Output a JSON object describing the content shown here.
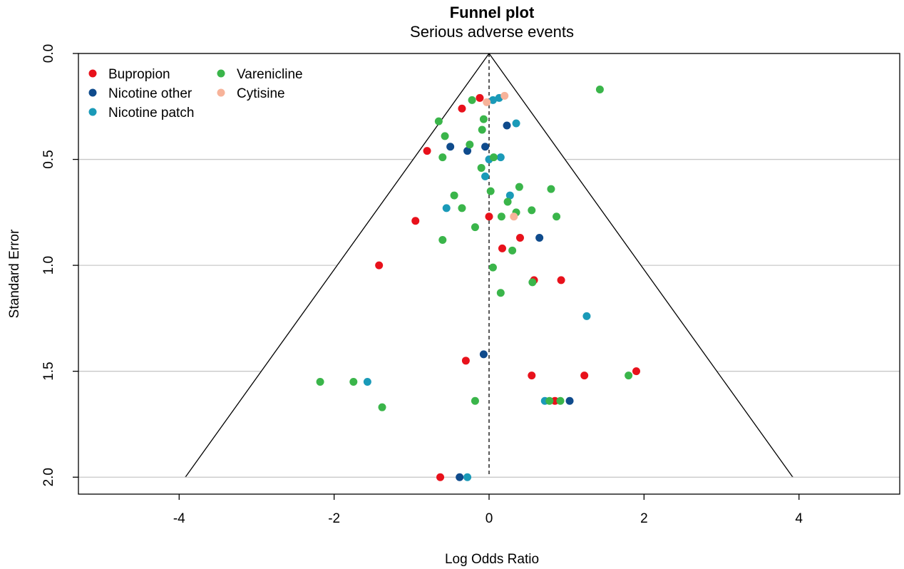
{
  "chart_data": {
    "type": "scatter",
    "title": "Funnel plot",
    "subtitle": "Serious adverse events",
    "xlabel": "Log Odds Ratio",
    "ylabel": "Standard Error",
    "xlim": [
      -5.3,
      5.3
    ],
    "ylim": [
      2.08,
      0.0
    ],
    "y_reversed": true,
    "x_ticks": [
      "-4",
      "-2",
      "0",
      "2",
      "4"
    ],
    "x_tick_values": [
      -4,
      -2,
      0,
      2,
      4
    ],
    "y_ticks": [
      "0.0",
      "0.5",
      "1.0",
      "1.5",
      "2.0"
    ],
    "y_tick_values": [
      0.0,
      0.5,
      1.0,
      1.5,
      2.0
    ],
    "grid": "horizontal",
    "funnel": {
      "apex": [
        0,
        0
      ],
      "base_se": 2.0,
      "base_x": [
        -3.92,
        3.92
      ]
    },
    "reference_line_x": 0,
    "legend": {
      "placement": "top-left",
      "entries": [
        {
          "label": "Bupropion",
          "series": 0
        },
        {
          "label": "Varenicline",
          "series": 3
        },
        {
          "label": "Nicotine other",
          "series": 1
        },
        {
          "label": "Cytisine",
          "series": 4
        },
        {
          "label": "Nicotine patch",
          "series": 2
        }
      ]
    },
    "series": [
      {
        "name": "Bupropion",
        "color": "#e8111b",
        "points": [
          [
            -0.12,
            0.21
          ],
          [
            -0.35,
            0.26
          ],
          [
            -0.8,
            0.46
          ],
          [
            -0.95,
            0.79
          ],
          [
            0.0,
            0.77
          ],
          [
            0.4,
            0.87
          ],
          [
            0.17,
            0.92
          ],
          [
            -1.42,
            1.0
          ],
          [
            0.58,
            1.07
          ],
          [
            0.93,
            1.07
          ],
          [
            -0.3,
            1.45
          ],
          [
            0.55,
            1.52
          ],
          [
            1.23,
            1.52
          ],
          [
            1.9,
            1.5
          ],
          [
            0.85,
            1.64
          ],
          [
            -0.63,
            2.0
          ]
        ]
      },
      {
        "name": "Nicotine other",
        "color": "#0f4b8c",
        "points": [
          [
            0.23,
            0.34
          ],
          [
            -0.5,
            0.44
          ],
          [
            -0.28,
            0.46
          ],
          [
            -0.05,
            0.44
          ],
          [
            0.65,
            0.87
          ],
          [
            -0.07,
            1.42
          ],
          [
            1.04,
            1.64
          ],
          [
            -0.38,
            2.0
          ]
        ]
      },
      {
        "name": "Nicotine patch",
        "color": "#1a9ab8",
        "points": [
          [
            0.05,
            0.22
          ],
          [
            0.13,
            0.21
          ],
          [
            0.35,
            0.33
          ],
          [
            0.0,
            0.5
          ],
          [
            0.15,
            0.49
          ],
          [
            -0.05,
            0.58
          ],
          [
            0.27,
            0.67
          ],
          [
            -0.55,
            0.73
          ],
          [
            1.26,
            1.24
          ],
          [
            -1.57,
            1.55
          ],
          [
            0.72,
            1.64
          ],
          [
            -0.28,
            2.0
          ]
        ]
      },
      {
        "name": "Varenicline",
        "color": "#3ab54a",
        "points": [
          [
            1.43,
            0.17
          ],
          [
            -0.22,
            0.22
          ],
          [
            -0.07,
            0.31
          ],
          [
            -0.65,
            0.32
          ],
          [
            -0.09,
            0.36
          ],
          [
            -0.57,
            0.39
          ],
          [
            -0.25,
            0.43
          ],
          [
            0.06,
            0.49
          ],
          [
            -0.6,
            0.49
          ],
          [
            -0.1,
            0.54
          ],
          [
            0.39,
            0.63
          ],
          [
            0.8,
            0.64
          ],
          [
            0.02,
            0.65
          ],
          [
            -0.45,
            0.67
          ],
          [
            0.24,
            0.7
          ],
          [
            -0.35,
            0.73
          ],
          [
            0.55,
            0.74
          ],
          [
            0.35,
            0.75
          ],
          [
            0.87,
            0.77
          ],
          [
            0.16,
            0.77
          ],
          [
            -0.18,
            0.82
          ],
          [
            -0.6,
            0.88
          ],
          [
            0.3,
            0.93
          ],
          [
            0.05,
            1.01
          ],
          [
            0.56,
            1.08
          ],
          [
            0.15,
            1.13
          ],
          [
            1.8,
            1.52
          ],
          [
            -2.18,
            1.55
          ],
          [
            -1.75,
            1.55
          ],
          [
            -0.18,
            1.64
          ],
          [
            0.78,
            1.64
          ],
          [
            0.92,
            1.64
          ],
          [
            -1.38,
            1.67
          ]
        ]
      },
      {
        "name": "Cytisine",
        "color": "#f7b39a",
        "points": [
          [
            0.2,
            0.2
          ],
          [
            -0.03,
            0.23
          ],
          [
            0.32,
            0.77
          ]
        ]
      }
    ]
  }
}
